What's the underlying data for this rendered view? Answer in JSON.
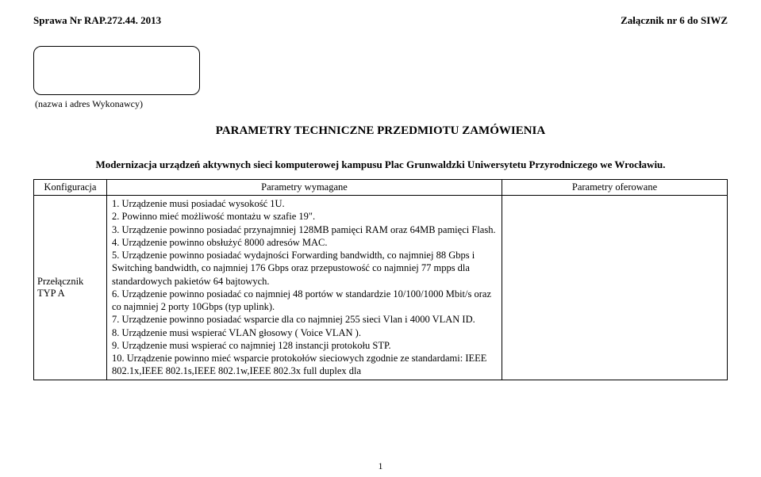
{
  "header": {
    "case_no": "Sprawa Nr RAP.272.44. 2013",
    "attachment": "Załącznik nr 6 do SIWZ"
  },
  "contractor_label": "(nazwa i adres Wykonawcy)",
  "main_title": "PARAMETRY TECHNICZNE PRZEDMIOTU ZAMÓWIENIA",
  "subtitle": "Modernizacja urządzeń aktywnych sieci komputerowej kampusu Plac Grunwaldzki Uniwersytetu Przyrodniczego we Wrocławiu.",
  "table": {
    "headers": {
      "col1": "Konfiguracja",
      "col2": "Parametry wymagane",
      "col3": "Parametry oferowane"
    },
    "row": {
      "config_line1": "Przełącznik",
      "config_line2": "TYP A",
      "req_lines": [
        "1. Urządzenie musi posiadać wysokość 1U.",
        "2. Powinno mieć możliwość montażu w szafie 19\".",
        "3. Urządzenie powinno posiadać przynajmniej 128MB pamięci RAM oraz 64MB pamięci Flash.",
        "4. Urządzenie powinno obsłużyć 8000 adresów MAC.",
        "5. Urządzenie powinno posiadać wydajności Forwarding bandwidth, co najmniej 88 Gbps i Switching bandwidth, co najmniej 176 Gbps oraz przepustowość co najmniej 77 mpps dla standardowych pakietów 64 bajtowych.",
        "6. Urządzenie powinno posiadać co najmniej 48 portów w standardzie 10/100/1000 Mbit/s oraz co najmniej 2 porty 10Gbps (typ uplink).",
        "7. Urządzenie powinno posiadać wsparcie dla co najmniej 255 sieci Vlan i 4000 VLAN ID.",
        "8. Urządzenie musi wspierać VLAN głosowy ( Voice VLAN ).",
        "9. Urządzenie musi wspierać co najmniej 128 instancji protokołu STP.",
        "10. Urządzenie powinno mieć wsparcie protokołów sieciowych zgodnie ze standardami: IEEE 802.1x,IEEE 802.1s,IEEE 802.1w,IEEE 802.3x full duplex dla"
      ]
    }
  },
  "page_num": "1"
}
